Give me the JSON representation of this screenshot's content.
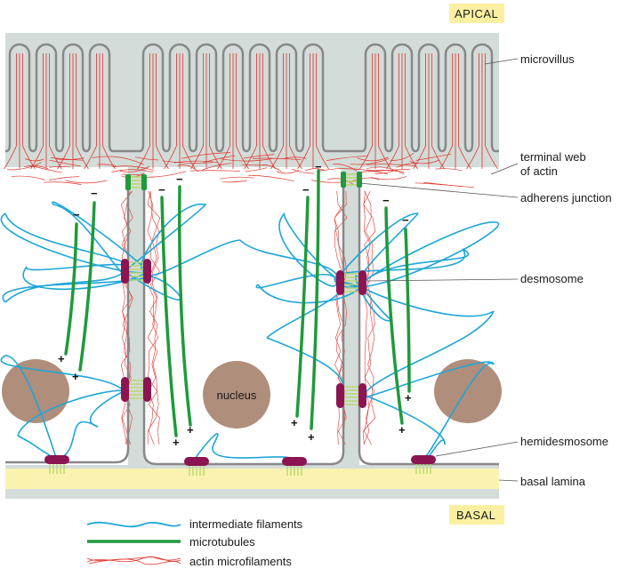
{
  "tags": {
    "apical": "APICAL",
    "basal": "BASAL"
  },
  "labels": {
    "microvillus": "microvillus",
    "terminal_web_1": "terminal web",
    "terminal_web_2": "of actin",
    "adherens": "adherens junction",
    "desmosome": "desmosome",
    "hemidesmosome": "hemidesmosome",
    "basal_lamina": "basal lamina",
    "nucleus": "nucleus"
  },
  "legend": {
    "intermediate": "intermediate filaments",
    "microtubules": "microtubules",
    "actin": "actin microfilaments"
  },
  "signs": {
    "plus": "+",
    "minus": "−"
  },
  "colors": {
    "cell_fill": "#d3dcd8",
    "cytoplasm": "#ffffff",
    "membrane": "#888888",
    "actin": "#e0342c",
    "microtubule": "#1f9a3c",
    "intermediate": "#1ea6d8",
    "desmosome": "#8c1452",
    "junction_lines": "#b8d86a",
    "nucleus": "#b08e7c",
    "lamina": "#faf3b0",
    "tag_bg": "#fbf0a2"
  }
}
